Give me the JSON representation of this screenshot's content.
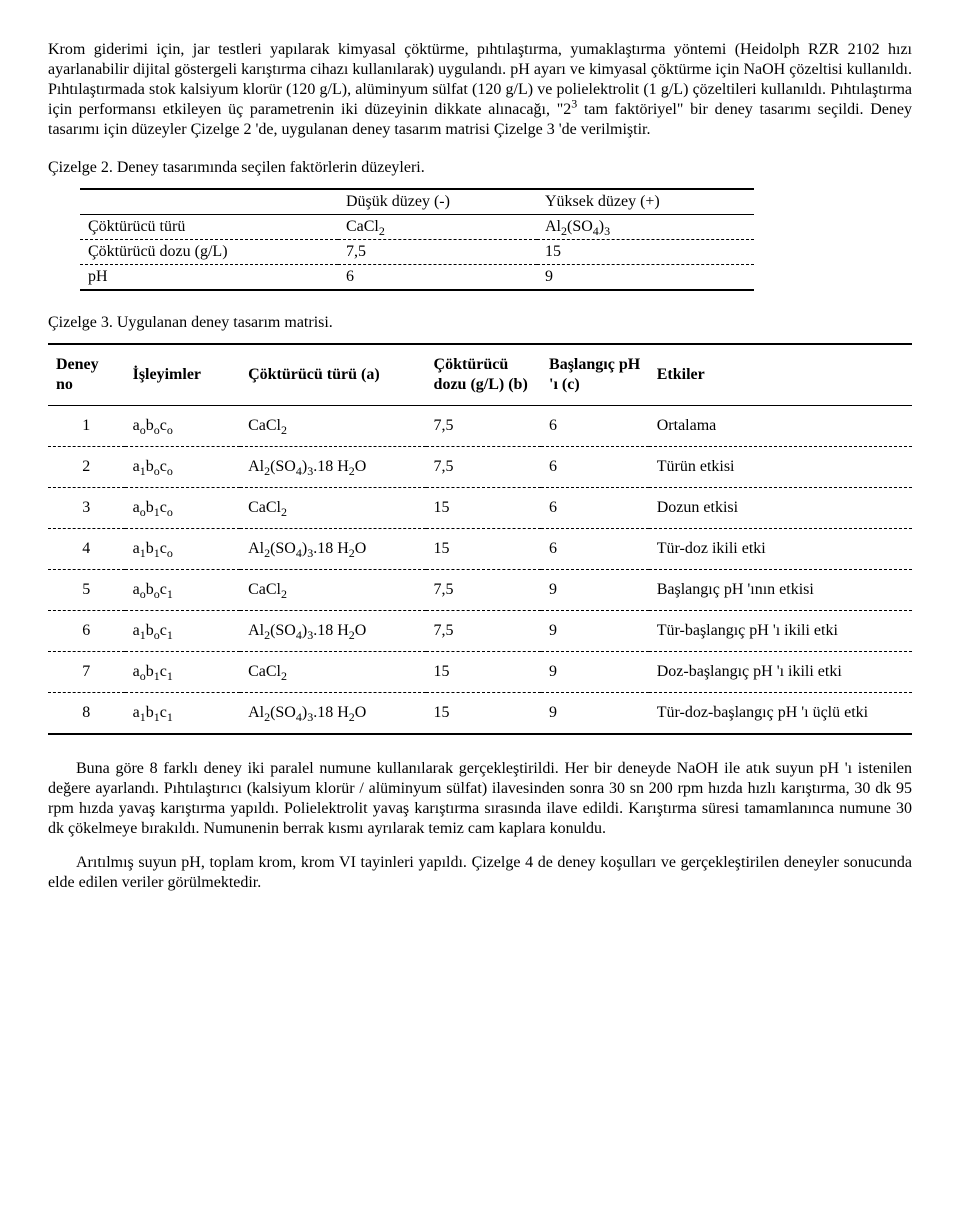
{
  "para1": "Krom giderimi için, jar testleri yapılarak kimyasal çöktürme, pıhtılaştırma, yumaklaştırma yöntemi (Heidolph RZR 2102 hızı ayarlanabilir dijital göstergeli karıştırma cihazı kullanılarak) uygulandı. pH ayarı ve kimyasal çöktürme için NaOH çözeltisi kullanıldı. Pıhtılaştırmada stok kalsiyum klorür (120 g/L), alüminyum sülfat (120 g/L) ve polielektrolit (1 g/L) çözeltileri kullanıldı. Pıhtılaştırma için performansı etkileyen üç parametrenin iki düzeyinin dikkate alınacağı, \"2",
  "para1_sup": "3",
  "para1_tail": " tam faktöriyel\" bir deney tasarımı seçildi. Deney tasarımı için düzeyler Çizelge 2 'de, uygulanan deney tasarım matrisi Çizelge 3 'de verilmiştir.",
  "caption2": "Çizelge 2.  Deney tasarımında seçilen faktörlerin düzeyleri.",
  "t2": {
    "col_low": "Düşük düzey (-)",
    "col_high": "Yüksek düzey (+)",
    "r1_label": "Çöktürücü türü",
    "r1_low_html": "CaCl<sub>2</sub>",
    "r1_high_html": "Al<sub>2</sub>(SO<sub>4</sub>)<sub>3</sub>",
    "r2_label": "Çöktürücü dozu (g/L)",
    "r2_low": "7,5",
    "r2_high": "15",
    "r3_label": "pH",
    "r3_low": "6",
    "r3_high": "9"
  },
  "caption3": "Çizelge 3.  Uygulanan deney tasarım matrisi.",
  "t3": {
    "h_no": "Deney no",
    "h_isl": "İşleyimler",
    "h_tur": "Çöktürücü türü (a)",
    "h_doz": "Çöktürücü dozu (g/L) (b)",
    "h_ph": "Başlangıç pH 'ı (c)",
    "h_etk": "Etkiler",
    "rows": [
      {
        "no": "1",
        "isl_html": "a<sub>o</sub>b<sub>o</sub>c<sub>o</sub>",
        "tur_html": "CaCl<sub>2</sub>",
        "doz": "7,5",
        "ph": "6",
        "etk": "Ortalama"
      },
      {
        "no": "2",
        "isl_html": "a<sub>1</sub>b<sub>o</sub>c<sub>o</sub>",
        "tur_html": "Al<sub>2</sub>(SO<sub>4</sub>)<sub>3</sub>.18 H<sub>2</sub>O",
        "doz": "7,5",
        "ph": "6",
        "etk": "Türün etkisi"
      },
      {
        "no": "3",
        "isl_html": "a<sub>o</sub>b<sub>1</sub>c<sub>o</sub>",
        "tur_html": "CaCl<sub>2</sub>",
        "doz": "15",
        "ph": "6",
        "etk": "Dozun etkisi"
      },
      {
        "no": "4",
        "isl_html": "a<sub>1</sub>b<sub>1</sub>c<sub>o</sub>",
        "tur_html": "Al<sub>2</sub>(SO<sub>4</sub>)<sub>3</sub>.18 H<sub>2</sub>O",
        "doz": "15",
        "ph": "6",
        "etk": "Tür-doz ikili etki"
      },
      {
        "no": "5",
        "isl_html": "a<sub>o</sub>b<sub>o</sub>c<sub>1</sub>",
        "tur_html": "CaCl<sub>2</sub>",
        "doz": "7,5",
        "ph": "9",
        "etk": "Başlangıç pH 'ının etkisi"
      },
      {
        "no": "6",
        "isl_html": "a<sub>1</sub>b<sub>o</sub>c<sub>1</sub>",
        "tur_html": "Al<sub>2</sub>(SO<sub>4</sub>)<sub>3</sub>.18 H<sub>2</sub>O",
        "doz": "7,5",
        "ph": "9",
        "etk": "Tür-başlangıç pH 'ı ikili etki"
      },
      {
        "no": "7",
        "isl_html": "a<sub>o</sub>b<sub>1</sub>c<sub>1</sub>",
        "tur_html": "CaCl<sub>2</sub>",
        "doz": "15",
        "ph": "9",
        "etk": "Doz-başlangıç pH 'ı ikili etki"
      },
      {
        "no": "8",
        "isl_html": "a<sub>1</sub>b<sub>1</sub>c<sub>1</sub>",
        "tur_html": "Al<sub>2</sub>(SO<sub>4</sub>)<sub>3</sub>.18 H<sub>2</sub>O",
        "doz": "15",
        "ph": "9",
        "etk": "Tür-doz-başlangıç pH 'ı üçlü etki"
      }
    ]
  },
  "para2": "Buna göre 8 farklı deney iki paralel numune kullanılarak gerçekleştirildi. Her bir deneyde NaOH ile atık suyun pH 'ı istenilen değere ayarlandı. Pıhtılaştırıcı (kalsiyum klorür / alüminyum sülfat) ilavesinden sonra 30 sn 200 rpm hızda hızlı karıştırma, 30 dk 95 rpm hızda yavaş karıştırma yapıldı. Polielektrolit yavaş karıştırma sırasında ilave edildi. Karıştırma süresi tamamlanınca numune 30 dk çökelmeye bırakıldı. Numunenin berrak kısmı ayrılarak temiz cam kaplara konuldu.",
  "para3": "Arıtılmış suyun pH, toplam krom, krom VI tayinleri yapıldı. Çizelge 4 de deney koşulları ve gerçekleştirilen deneyler sonucunda elde edilen veriler görülmektedir."
}
